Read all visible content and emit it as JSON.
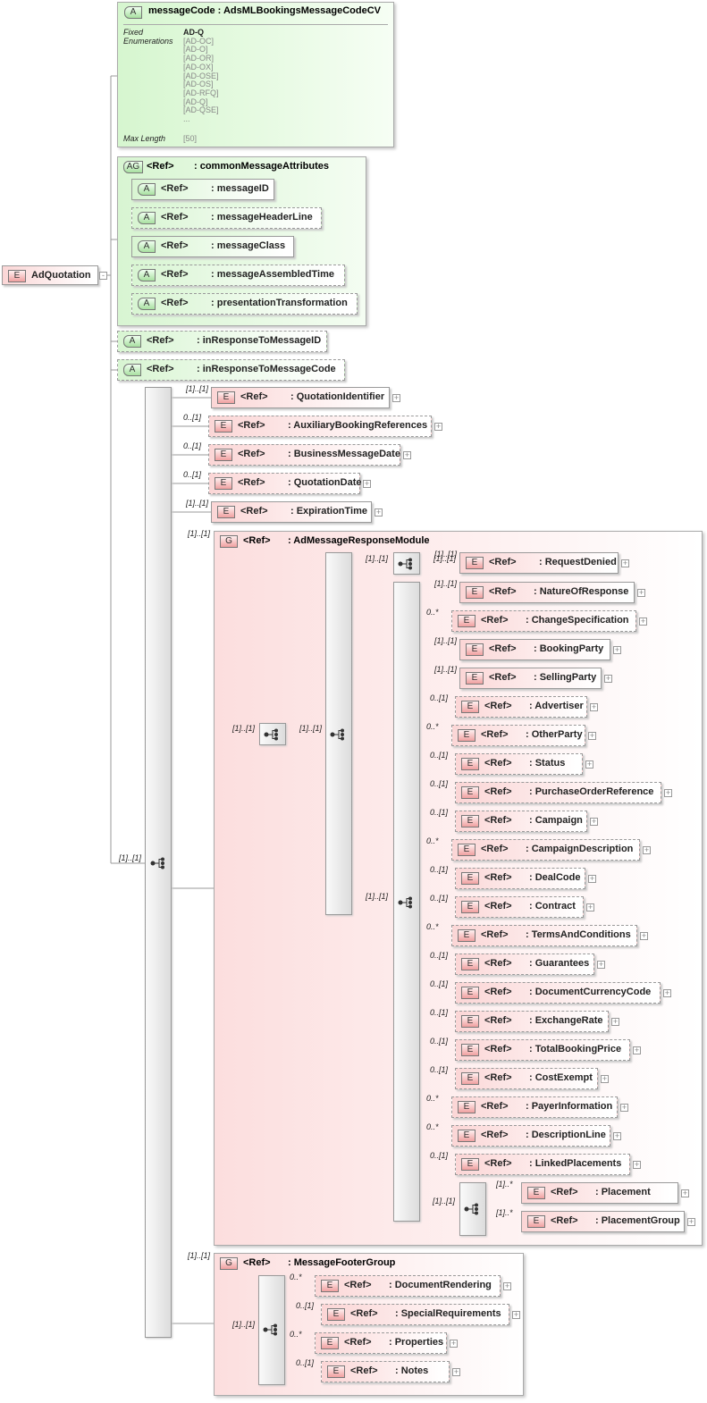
{
  "root": {
    "badge": "E",
    "name": "AdQuotation"
  },
  "message_code": {
    "badge": "A",
    "title": "messageCode : AdsMLBookingsMessageCodeCV",
    "facets": [
      {
        "label": "Fixed Enumerations",
        "values": [
          "AD-Q",
          "[AD-OC]",
          "[AD-O]",
          "[AD-OR]",
          "[AD-OX]",
          "[AD-OSE]",
          "[AD-OS]",
          "[AD-RFQ]",
          "[AD-Q]",
          "[AD-QSE]",
          "..."
        ]
      },
      {
        "label": "Max Length",
        "values": [
          "[50]"
        ]
      }
    ]
  },
  "attribute_group": {
    "badge": "AG",
    "ref": "<Ref>",
    "name": ": commonMessageAttributes",
    "attributes": [
      {
        "badge": "A",
        "ref": "<Ref>",
        "name": ": messageID",
        "optional": false
      },
      {
        "badge": "A",
        "ref": "<Ref>",
        "name": ": messageHeaderLine",
        "optional": true
      },
      {
        "badge": "A",
        "ref": "<Ref>",
        "name": ": messageClass",
        "optional": false
      },
      {
        "badge": "A",
        "ref": "<Ref>",
        "name": ": messageAssembledTime",
        "optional": true
      },
      {
        "badge": "A",
        "ref": "<Ref>",
        "name": ": presentationTransformation",
        "optional": true
      }
    ]
  },
  "attributes": [
    {
      "badge": "A",
      "ref": "<Ref>",
      "name": ": inResponseToMessageID",
      "optional": true
    },
    {
      "badge": "A",
      "ref": "<Ref>",
      "name": ": inResponseToMessageCode",
      "optional": true
    }
  ],
  "main_sequence": {
    "cardinality": "[1]..[1]"
  },
  "elements": [
    {
      "badge": "E",
      "ref": "<Ref>",
      "name": ": QuotationIdentifier",
      "cardinality": "[1]..[1]",
      "optional": false
    },
    {
      "badge": "E",
      "ref": "<Ref>",
      "name": ": AuxiliaryBookingReferences",
      "cardinality": "0..[1]",
      "optional": true
    },
    {
      "badge": "E",
      "ref": "<Ref>",
      "name": ": BusinessMessageDate",
      "cardinality": "0..[1]",
      "optional": true
    },
    {
      "badge": "E",
      "ref": "<Ref>",
      "name": ": QuotationDate",
      "cardinality": "0..[1]",
      "optional": true
    },
    {
      "badge": "E",
      "ref": "<Ref>",
      "name": ": ExpirationTime",
      "cardinality": "[1]..[1]",
      "optional": false
    }
  ],
  "response_module": {
    "badge": "G",
    "ref": "<Ref>",
    "name": ": AdMessageResponseModule",
    "cardinality": "[1]..[1]",
    "choice_cardinality": "[1]..[1]",
    "sequence_cardinality": "[1]..[1]",
    "denied_branch_cardinality": "[1]..[1]",
    "request_denied": {
      "badge": "E",
      "ref": "<Ref>",
      "name": ": RequestDenied",
      "cardinality": "[1]..[1]",
      "optional": false
    },
    "response_branch_cardinality": "[1]..[1]",
    "children": [
      {
        "badge": "E",
        "ref": "<Ref>",
        "name": ": NatureOfResponse",
        "cardinality": "[1]..[1]",
        "optional": false
      },
      {
        "badge": "E",
        "ref": "<Ref>",
        "name": ": ChangeSpecification",
        "cardinality": "0..*",
        "optional": true
      },
      {
        "badge": "E",
        "ref": "<Ref>",
        "name": ": BookingParty",
        "cardinality": "[1]..[1]",
        "optional": false
      },
      {
        "badge": "E",
        "ref": "<Ref>",
        "name": ": SellingParty",
        "cardinality": "[1]..[1]",
        "optional": false
      },
      {
        "badge": "E",
        "ref": "<Ref>",
        "name": ": Advertiser",
        "cardinality": "0..[1]",
        "optional": true
      },
      {
        "badge": "E",
        "ref": "<Ref>",
        "name": ": OtherParty",
        "cardinality": "0..*",
        "optional": true
      },
      {
        "badge": "E",
        "ref": "<Ref>",
        "name": ": Status",
        "cardinality": "0..[1]",
        "optional": true
      },
      {
        "badge": "E",
        "ref": "<Ref>",
        "name": ": PurchaseOrderReference",
        "cardinality": "0..[1]",
        "optional": true
      },
      {
        "badge": "E",
        "ref": "<Ref>",
        "name": ": Campaign",
        "cardinality": "0..[1]",
        "optional": true
      },
      {
        "badge": "E",
        "ref": "<Ref>",
        "name": ": CampaignDescription",
        "cardinality": "0..*",
        "optional": true
      },
      {
        "badge": "E",
        "ref": "<Ref>",
        "name": ": DealCode",
        "cardinality": "0..[1]",
        "optional": true
      },
      {
        "badge": "E",
        "ref": "<Ref>",
        "name": ": Contract",
        "cardinality": "0..[1]",
        "optional": true
      },
      {
        "badge": "E",
        "ref": "<Ref>",
        "name": ": TermsAndConditions",
        "cardinality": "0..*",
        "optional": true
      },
      {
        "badge": "E",
        "ref": "<Ref>",
        "name": ": Guarantees",
        "cardinality": "0..[1]",
        "optional": true
      },
      {
        "badge": "E",
        "ref": "<Ref>",
        "name": ": DocumentCurrencyCode",
        "cardinality": "0..[1]",
        "optional": true
      },
      {
        "badge": "E",
        "ref": "<Ref>",
        "name": ": ExchangeRate",
        "cardinality": "0..[1]",
        "optional": true
      },
      {
        "badge": "E",
        "ref": "<Ref>",
        "name": ": TotalBookingPrice",
        "cardinality": "0..[1]",
        "optional": true
      },
      {
        "badge": "E",
        "ref": "<Ref>",
        "name": ": CostExempt",
        "cardinality": "0..[1]",
        "optional": true
      },
      {
        "badge": "E",
        "ref": "<Ref>",
        "name": ": PayerInformation",
        "cardinality": "0..*",
        "optional": true
      },
      {
        "badge": "E",
        "ref": "<Ref>",
        "name": ": DescriptionLine",
        "cardinality": "0..*",
        "optional": true
      },
      {
        "badge": "E",
        "ref": "<Ref>",
        "name": ": LinkedPlacements",
        "cardinality": "0..[1]",
        "optional": true
      }
    ],
    "placement_choice_cardinality": "[1]..[1]",
    "placement_choice": [
      {
        "badge": "E",
        "ref": "<Ref>",
        "name": ": Placement",
        "cardinality": "[1]..*",
        "optional": false
      },
      {
        "badge": "E",
        "ref": "<Ref>",
        "name": ": PlacementGroup",
        "cardinality": "[1]..*",
        "optional": false
      }
    ]
  },
  "footer_group": {
    "badge": "G",
    "ref": "<Ref>",
    "name": ": MessageFooterGroup",
    "cardinality": "[1]..[1]",
    "sequence_cardinality": "[1]..[1]",
    "children": [
      {
        "badge": "E",
        "ref": "<Ref>",
        "name": ": DocumentRendering",
        "cardinality": "0..*",
        "optional": true
      },
      {
        "badge": "E",
        "ref": "<Ref>",
        "name": ": SpecialRequirements",
        "cardinality": "0..[1]",
        "optional": true
      },
      {
        "badge": "E",
        "ref": "<Ref>",
        "name": ": Properties",
        "cardinality": "0..*",
        "optional": true
      },
      {
        "badge": "E",
        "ref": "<Ref>",
        "name": ": Notes",
        "cardinality": "0..[1]",
        "optional": true
      }
    ]
  }
}
